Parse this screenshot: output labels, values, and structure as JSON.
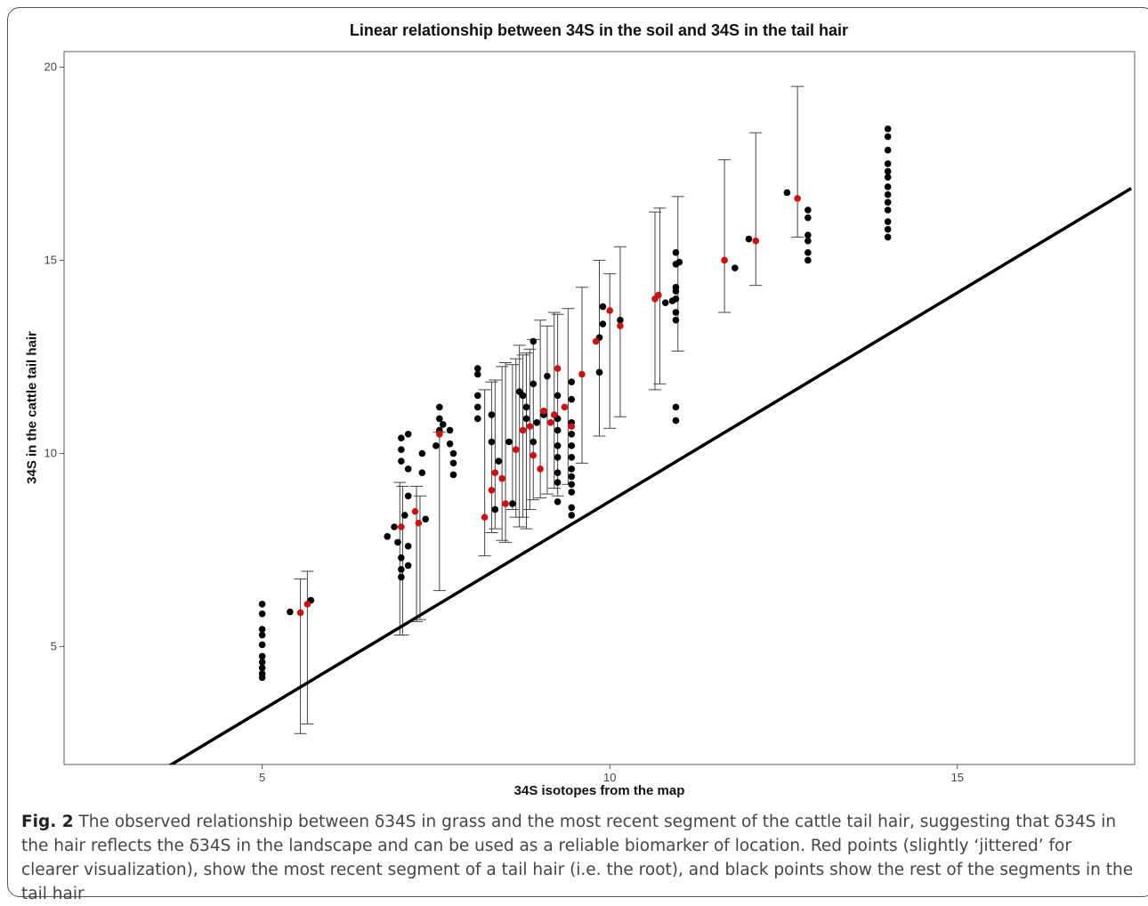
{
  "chart_data": {
    "type": "scatter",
    "title": "Linear relationship between 34S in the soil and 34S in the tail hair",
    "xlabel": "34S isotopes from the map",
    "ylabel": "34S in the cattle tail hair",
    "xlim": [
      2.15,
      17.55
    ],
    "ylim": [
      1.95,
      20.4
    ],
    "xticks": [
      5,
      10,
      15
    ],
    "yticks": [
      5,
      10,
      15,
      20
    ],
    "grid": false,
    "regression_line": {
      "slope": 1.08,
      "intercept": -2.04,
      "color": "#000000"
    },
    "series": [
      {
        "color": "#cc1111",
        "points": [
          [
            5.55,
            5.88
          ],
          [
            5.65,
            6.1
          ],
          [
            7.0,
            8.1
          ],
          [
            7.2,
            8.5
          ],
          [
            7.25,
            8.2
          ],
          [
            7.55,
            10.5
          ],
          [
            8.2,
            8.35
          ],
          [
            8.3,
            9.05
          ],
          [
            8.35,
            9.5
          ],
          [
            8.45,
            9.35
          ],
          [
            8.5,
            8.7
          ],
          [
            8.65,
            10.1
          ],
          [
            8.75,
            10.6
          ],
          [
            8.85,
            10.7
          ],
          [
            8.9,
            9.95
          ],
          [
            9.0,
            9.6
          ],
          [
            9.05,
            11.1
          ],
          [
            9.15,
            10.8
          ],
          [
            9.2,
            11.0
          ],
          [
            9.25,
            12.2
          ],
          [
            9.35,
            11.2
          ],
          [
            9.45,
            10.7
          ],
          [
            9.6,
            12.05
          ],
          [
            9.8,
            12.9
          ],
          [
            10.0,
            13.7
          ],
          [
            10.15,
            13.3
          ],
          [
            10.65,
            14.0
          ],
          [
            10.7,
            14.1
          ],
          [
            11.65,
            15.0
          ],
          [
            12.1,
            15.5
          ],
          [
            12.7,
            16.6
          ]
        ]
      },
      {
        "color": "#000000",
        "points": [
          [
            5.0,
            6.1
          ],
          [
            5.0,
            5.85
          ],
          [
            5.0,
            5.45
          ],
          [
            5.0,
            5.3
          ],
          [
            5.0,
            5.05
          ],
          [
            5.0,
            4.75
          ],
          [
            5.0,
            4.6
          ],
          [
            5.0,
            4.45
          ],
          [
            5.0,
            4.3
          ],
          [
            5.0,
            4.2
          ],
          [
            5.4,
            5.9
          ],
          [
            5.7,
            6.2
          ],
          [
            6.8,
            7.85
          ],
          [
            6.9,
            8.1
          ],
          [
            6.95,
            7.7
          ],
          [
            7.0,
            7.3
          ],
          [
            7.0,
            7.0
          ],
          [
            7.0,
            6.8
          ],
          [
            7.05,
            8.4
          ],
          [
            7.1,
            9.6
          ],
          [
            7.1,
            8.9
          ],
          [
            7.1,
            7.6
          ],
          [
            7.1,
            7.1
          ],
          [
            7.0,
            10.4
          ],
          [
            7.0,
            10.1
          ],
          [
            7.0,
            9.8
          ],
          [
            7.1,
            10.5
          ],
          [
            7.3,
            10.0
          ],
          [
            7.3,
            9.5
          ],
          [
            7.35,
            8.3
          ],
          [
            7.5,
            10.2
          ],
          [
            7.55,
            11.2
          ],
          [
            7.55,
            10.9
          ],
          [
            7.55,
            10.6
          ],
          [
            7.6,
            10.75
          ],
          [
            7.7,
            10.6
          ],
          [
            7.7,
            10.25
          ],
          [
            7.75,
            10.0
          ],
          [
            7.75,
            9.75
          ],
          [
            7.75,
            9.45
          ],
          [
            8.1,
            12.2
          ],
          [
            8.1,
            12.05
          ],
          [
            8.1,
            11.5
          ],
          [
            8.1,
            11.2
          ],
          [
            8.1,
            10.9
          ],
          [
            8.3,
            11.0
          ],
          [
            8.3,
            10.3
          ],
          [
            8.35,
            8.55
          ],
          [
            8.4,
            9.8
          ],
          [
            8.55,
            10.3
          ],
          [
            8.6,
            8.7
          ],
          [
            8.7,
            11.6
          ],
          [
            8.75,
            11.5
          ],
          [
            8.8,
            11.2
          ],
          [
            8.8,
            10.9
          ],
          [
            8.9,
            10.3
          ],
          [
            8.9,
            12.9
          ],
          [
            8.9,
            11.8
          ],
          [
            8.95,
            10.8
          ],
          [
            9.05,
            11.0
          ],
          [
            9.1,
            12.0
          ],
          [
            9.25,
            11.5
          ],
          [
            9.25,
            10.9
          ],
          [
            9.25,
            10.6
          ],
          [
            9.25,
            10.2
          ],
          [
            9.25,
            9.9
          ],
          [
            9.25,
            9.5
          ],
          [
            9.25,
            9.25
          ],
          [
            9.25,
            8.75
          ],
          [
            9.45,
            11.85
          ],
          [
            9.45,
            11.4
          ],
          [
            9.45,
            10.8
          ],
          [
            9.45,
            10.5
          ],
          [
            9.45,
            10.2
          ],
          [
            9.45,
            9.9
          ],
          [
            9.45,
            9.6
          ],
          [
            9.45,
            9.4
          ],
          [
            9.45,
            9.2
          ],
          [
            9.45,
            9.0
          ],
          [
            9.45,
            8.6
          ],
          [
            9.45,
            8.4
          ],
          [
            9.85,
            12.1
          ],
          [
            9.85,
            13.0
          ],
          [
            9.9,
            13.35
          ],
          [
            9.9,
            13.8
          ],
          [
            10.15,
            13.45
          ],
          [
            10.8,
            13.9
          ],
          [
            10.9,
            13.95
          ],
          [
            10.95,
            15.2
          ],
          [
            10.95,
            14.9
          ],
          [
            10.95,
            14.3
          ],
          [
            10.95,
            14.2
          ],
          [
            10.95,
            14.0
          ],
          [
            10.95,
            13.65
          ],
          [
            10.95,
            13.45
          ],
          [
            10.95,
            11.2
          ],
          [
            10.95,
            10.85
          ],
          [
            11.0,
            14.95
          ],
          [
            11.8,
            14.8
          ],
          [
            12.0,
            15.55
          ],
          [
            12.55,
            16.75
          ],
          [
            12.85,
            16.3
          ],
          [
            12.85,
            16.1
          ],
          [
            12.85,
            15.65
          ],
          [
            12.85,
            15.5
          ],
          [
            12.85,
            15.2
          ],
          [
            12.85,
            15.0
          ],
          [
            14.0,
            18.4
          ],
          [
            14.0,
            18.2
          ],
          [
            14.0,
            17.85
          ],
          [
            14.0,
            17.5
          ],
          [
            14.0,
            17.3
          ],
          [
            14.0,
            17.15
          ],
          [
            14.0,
            16.9
          ],
          [
            14.0,
            16.7
          ],
          [
            14.0,
            16.5
          ],
          [
            14.0,
            16.3
          ],
          [
            14.0,
            16.0
          ],
          [
            14.0,
            15.8
          ],
          [
            14.0,
            15.6
          ]
        ]
      }
    ],
    "error_bars": [
      [
        5.55,
        2.75,
        6.75
      ],
      [
        5.65,
        3.0,
        6.95
      ],
      [
        6.98,
        5.3,
        9.25
      ],
      [
        7.02,
        5.3,
        9.15
      ],
      [
        7.22,
        5.65,
        9.15
      ],
      [
        7.27,
        5.7,
        8.9
      ],
      [
        7.55,
        6.45,
        10.55
      ],
      [
        8.2,
        7.35,
        11.65
      ],
      [
        8.3,
        7.95,
        11.85
      ],
      [
        8.35,
        8.05,
        11.9
      ],
      [
        8.45,
        7.75,
        12.25
      ],
      [
        8.5,
        7.7,
        12.35
      ],
      [
        8.6,
        8.55,
        12.3
      ],
      [
        8.65,
        8.35,
        12.45
      ],
      [
        8.7,
        8.1,
        12.8
      ],
      [
        8.75,
        8.35,
        12.55
      ],
      [
        8.8,
        8.05,
        12.6
      ],
      [
        8.85,
        8.55,
        12.7
      ],
      [
        8.9,
        8.8,
        12.95
      ],
      [
        9.0,
        8.85,
        13.45
      ],
      [
        9.1,
        8.95,
        13.3
      ],
      [
        9.2,
        9.1,
        13.65
      ],
      [
        9.25,
        8.9,
        13.6
      ],
      [
        9.4,
        9.2,
        13.75
      ],
      [
        9.6,
        9.75,
        14.3
      ],
      [
        9.85,
        10.45,
        15.0
      ],
      [
        10.0,
        10.65,
        14.65
      ],
      [
        10.15,
        10.95,
        15.35
      ],
      [
        10.65,
        11.65,
        16.25
      ],
      [
        10.72,
        11.8,
        16.35
      ],
      [
        10.98,
        12.65,
        16.65
      ],
      [
        11.65,
        13.65,
        17.6
      ],
      [
        12.1,
        14.35,
        18.3
      ],
      [
        12.7,
        15.6,
        19.5
      ]
    ]
  },
  "caption": {
    "label": "Fig. 2",
    "text": "The observed relationship between δ34S in grass and the most recent segment of the cattle tail hair, suggesting that δ34S in the hair reflects the δ34S in the landscape and can be used as a reliable biomarker of location. Red points (slightly ‘jittered’ for clearer visualization), show the most recent segment of a tail hair (i.e. the root), and black points show the rest of the segments in the tail hair"
  }
}
